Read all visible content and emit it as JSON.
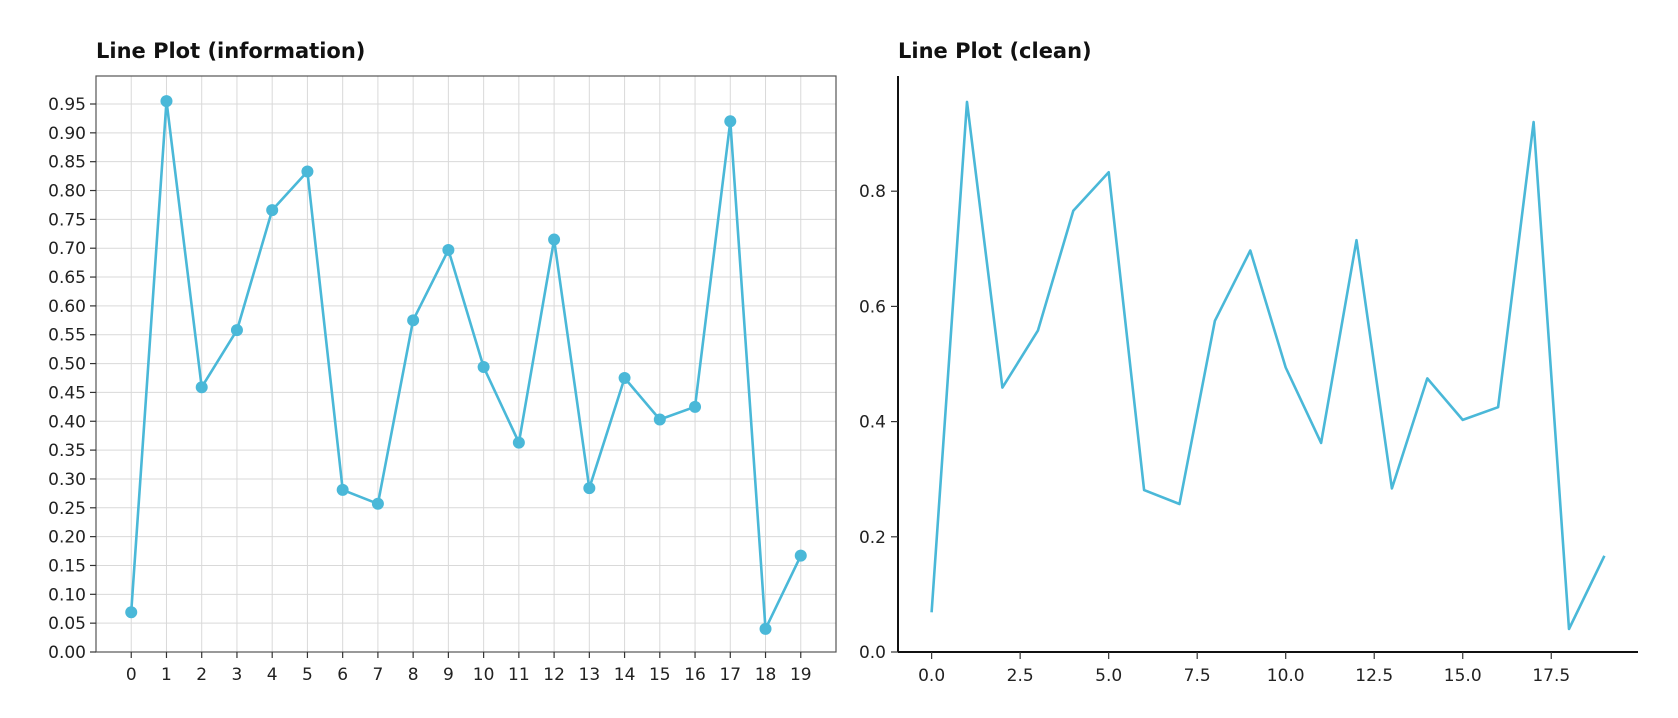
{
  "chart_data": [
    {
      "type": "line",
      "title": "Line Plot (information)",
      "xlabel": "",
      "ylabel": "",
      "markers": true,
      "grid": true,
      "color": "#4ab8d8",
      "x": [
        0,
        1,
        2,
        3,
        4,
        5,
        6,
        7,
        8,
        9,
        10,
        11,
        12,
        13,
        14,
        15,
        16,
        17,
        18,
        19
      ],
      "values": [
        0.069,
        0.955,
        0.459,
        0.558,
        0.766,
        0.833,
        0.281,
        0.257,
        0.575,
        0.697,
        0.494,
        0.363,
        0.715,
        0.284,
        0.475,
        0.403,
        0.425,
        0.92,
        0.04,
        0.167
      ],
      "xlim": [
        -1,
        20
      ],
      "ylim": [
        0.0,
        0.95
      ],
      "xticks": [
        0,
        1,
        2,
        3,
        4,
        5,
        6,
        7,
        8,
        9,
        10,
        11,
        12,
        13,
        14,
        15,
        16,
        17,
        18,
        19
      ],
      "yticks": [
        "0.00",
        "0.05",
        "0.10",
        "0.15",
        "0.20",
        "0.25",
        "0.30",
        "0.35",
        "0.40",
        "0.45",
        "0.50",
        "0.55",
        "0.60",
        "0.65",
        "0.70",
        "0.75",
        "0.80",
        "0.85",
        "0.90",
        "0.95"
      ]
    },
    {
      "type": "line",
      "title": "Line Plot (clean)",
      "xlabel": "",
      "ylabel": "",
      "markers": false,
      "grid": false,
      "color": "#4ab8d8",
      "x": [
        0,
        1,
        2,
        3,
        4,
        5,
        6,
        7,
        8,
        9,
        10,
        11,
        12,
        13,
        14,
        15,
        16,
        17,
        18,
        19
      ],
      "values": [
        0.069,
        0.955,
        0.459,
        0.558,
        0.766,
        0.833,
        0.281,
        0.257,
        0.575,
        0.697,
        0.494,
        0.363,
        0.715,
        0.284,
        0.475,
        0.403,
        0.425,
        0.92,
        0.04,
        0.167
      ],
      "xlim": [
        -0.95,
        19.95
      ],
      "ylim": [
        0.0,
        1.0
      ],
      "xticks": [
        "0.0",
        "2.5",
        "5.0",
        "7.5",
        "10.0",
        "12.5",
        "15.0",
        "17.5"
      ],
      "yticks": [
        "0.0",
        "0.2",
        "0.4",
        "0.6",
        "0.8"
      ]
    }
  ]
}
